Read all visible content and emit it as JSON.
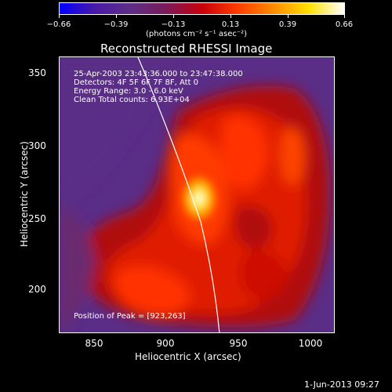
{
  "colorbar": {
    "ticks": [
      "−0.66",
      "−0.39",
      "−0.13",
      "0.13",
      "0.39",
      "0.66"
    ],
    "unit_label": "(photons cm⁻² s⁻¹ asec⁻²)",
    "colors": [
      "#0000ff",
      "#4a1aa6",
      "#5e2f86",
      "#7a1a5a",
      "#c8000a",
      "#ff3c00",
      "#ff8a00",
      "#ffe000",
      "#ffffff"
    ]
  },
  "image": {
    "title": "Reconstructed RHESSI Image",
    "xlabel": "Heliocentric X (arcsec)",
    "ylabel": "Heliocentric Y (arcsec)",
    "xticks": [
      "850",
      "900",
      "950",
      "1000"
    ],
    "yticks": [
      "350",
      "300",
      "250",
      "200"
    ],
    "info_lines": [
      "25-Apr-2003 23:43:36.000 to 23:47:38.000",
      "Detectors: 4F 5F 6F 7F 8F, Att 0",
      "Energy Range: 3.0 - 6.0 keV",
      "Clean    Total counts: 6.93E+04"
    ],
    "peak_text": "Position of Peak = [923,263]",
    "background_color": "#5a2d86",
    "limb_color": "#ffffff"
  },
  "footer": {
    "date": "1-Jun-2013 09:27"
  }
}
